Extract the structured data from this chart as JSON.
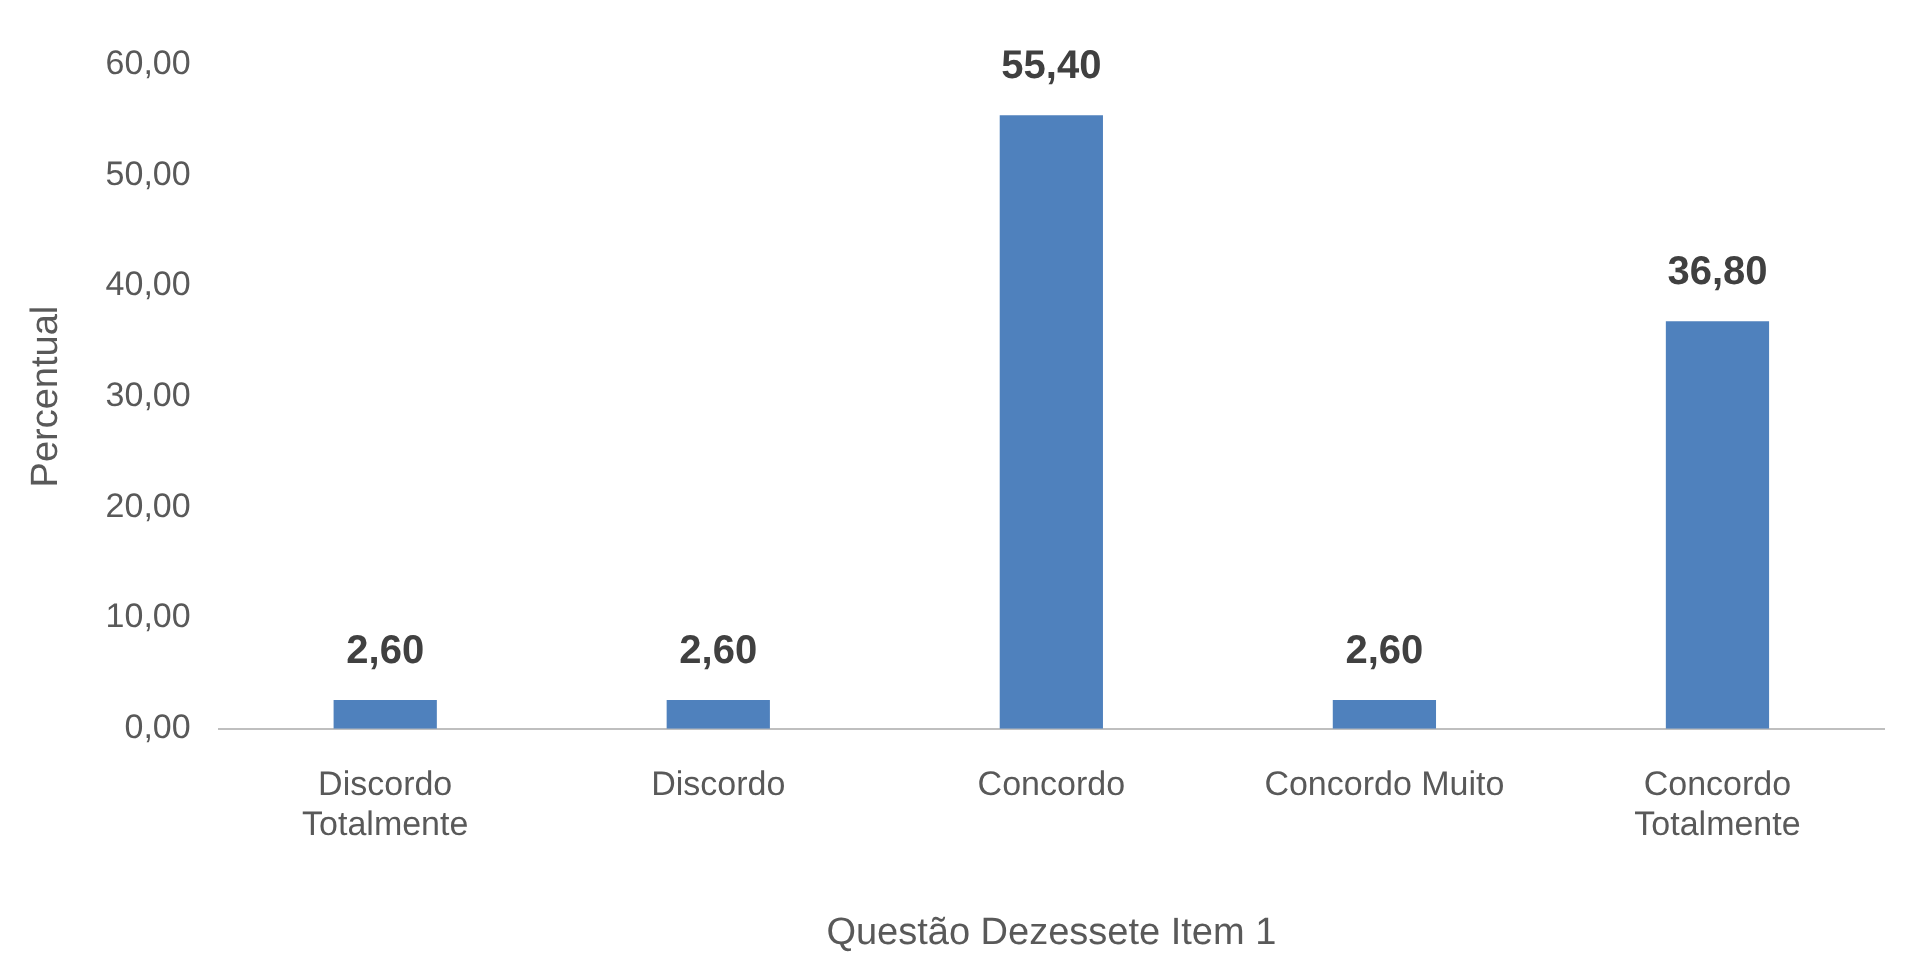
{
  "chart_data": {
    "type": "bar",
    "xlabel": "Questão Dezessete Item 1",
    "ylabel": "Percentual",
    "categories": [
      "Discordo Totalmente",
      "Discordo",
      "Concordo",
      "Concordo Muito",
      "Concordo Totalmente"
    ],
    "values": [
      2.6,
      2.6,
      55.4,
      2.6,
      36.8
    ],
    "value_labels": [
      "2,60",
      "2,60",
      "55,40",
      "2,60",
      "36,80"
    ],
    "color": "#4f81bd",
    "ylim": [
      0,
      60
    ],
    "yticks": [
      {
        "value": 0,
        "label": "0,00"
      },
      {
        "value": 10,
        "label": "10,00"
      },
      {
        "value": 20,
        "label": "20,00"
      },
      {
        "value": 30,
        "label": "30,00"
      },
      {
        "value": 40,
        "label": "40,00"
      },
      {
        "value": 50,
        "label": "50,00"
      },
      {
        "value": 60,
        "label": "60,00"
      }
    ],
    "grid": false,
    "legend": false
  }
}
